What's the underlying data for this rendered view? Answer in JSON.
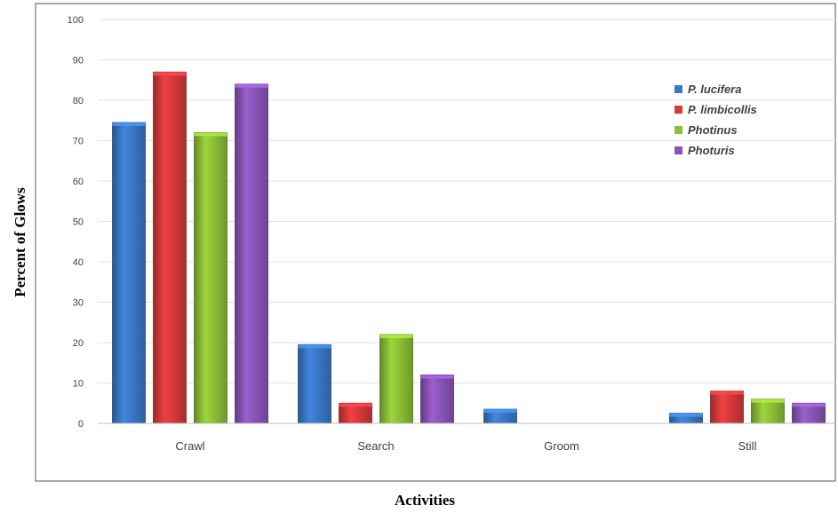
{
  "chart_data": {
    "type": "bar",
    "categories": [
      "Crawl",
      "Search",
      "Groom",
      "Still"
    ],
    "series": [
      {
        "name": "P. lucifera",
        "values": [
          74.5,
          19.5,
          3.5,
          2.5
        ],
        "color": "#3a78c6"
      },
      {
        "name": "P. limbicollis",
        "values": [
          87,
          5,
          0,
          8
        ],
        "color": "#d63a3a"
      },
      {
        "name": "Photinus",
        "values": [
          72,
          22,
          0,
          6
        ],
        "color": "#8bbf35"
      },
      {
        "name": "Photuris",
        "values": [
          84,
          12,
          0,
          5
        ],
        "color": "#8a55b8"
      }
    ],
    "title": "",
    "xlabel": "Activities",
    "ylabel": "Percent of Glows",
    "ylim": [
      0,
      100
    ],
    "yticks": [
      0,
      10,
      20,
      30,
      40,
      50,
      60,
      70,
      80,
      90,
      100
    ],
    "grid": true,
    "legend_position": "right"
  }
}
